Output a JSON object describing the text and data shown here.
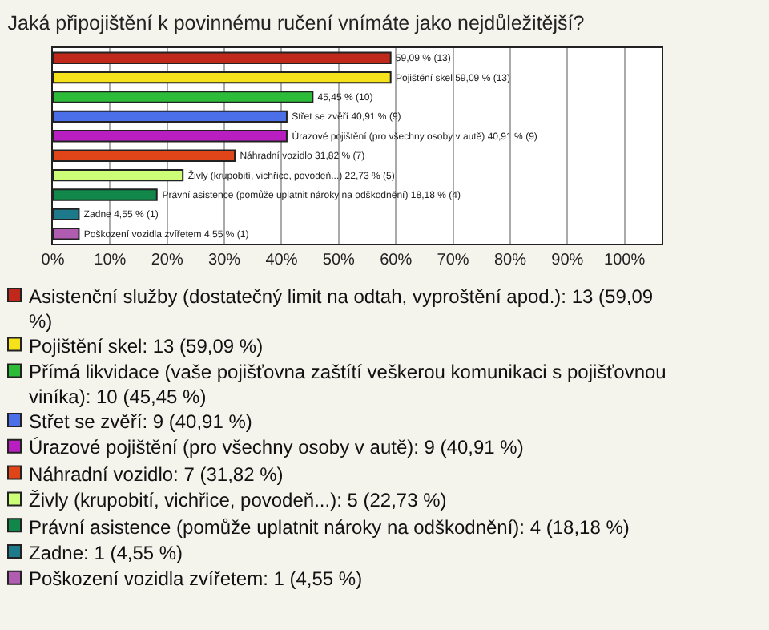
{
  "chart_data": {
    "type": "bar",
    "orientation": "horizontal",
    "title": "Jaká připojištění k povinnému ručení vnímáte jako nejdůležitější?",
    "categories": [
      null,
      null,
      null,
      null,
      null,
      null,
      null,
      null,
      null,
      null
    ],
    "series": [
      {
        "name": "Asistenční služby (dostatečný limit na odtah, vyproštění apod.): 13 (59,09 %)",
        "color": "#c0281c",
        "values": [
          59.09,
          null,
          null,
          null,
          null,
          null,
          null,
          null,
          null,
          null
        ],
        "value_labels": [
          "59,09 % (13)",
          null,
          null,
          null,
          null,
          null,
          null,
          null,
          null,
          null
        ]
      },
      {
        "name": "Pojištění skel: 13 (59,09 %)",
        "color": "#f5e21a",
        "values": [
          null,
          59.09,
          null,
          null,
          null,
          null,
          null,
          null,
          null,
          null
        ],
        "value_labels": [
          null,
          "Pojištění skel 59,09 % (13)",
          null,
          null,
          null,
          null,
          null,
          null,
          null,
          null
        ]
      },
      {
        "name": "Přímá likvidace (vaše pojišťovna zaštítí veškerou komunikaci s pojišťovnou viníka): 10 (45,45 %)",
        "color": "#2dbb3a",
        "values": [
          null,
          null,
          45.45,
          null,
          null,
          null,
          null,
          null,
          null,
          null
        ],
        "value_labels": [
          null,
          null,
          "45,45 % (10)",
          null,
          null,
          null,
          null,
          null,
          null,
          null
        ]
      },
      {
        "name": "Střet se zvěří: 9 (40,91 %)",
        "color": "#4a6fe8",
        "values": [
          null,
          null,
          null,
          40.91,
          null,
          null,
          null,
          null,
          null,
          null
        ],
        "value_labels": [
          null,
          null,
          null,
          "Střet se zvěří 40,91 % (9)",
          null,
          null,
          null,
          null,
          null,
          null
        ]
      },
      {
        "name": "Úrazové pojištění (pro všechny osoby v autě): 9 (40,91 %)",
        "color": "#b81ec0",
        "values": [
          null,
          null,
          null,
          null,
          40.91,
          null,
          null,
          null,
          null,
          null
        ],
        "value_labels": [
          null,
          null,
          null,
          null,
          "Úrazové pojištění (pro všechny osoby v autě) 40,91 % (9)",
          null,
          null,
          null,
          null,
          null
        ]
      },
      {
        "name": "Náhradní vozidlo: 7 (31,82 %)",
        "color": "#e0451a",
        "values": [
          null,
          null,
          null,
          null,
          null,
          31.82,
          null,
          null,
          null,
          null
        ],
        "value_labels": [
          null,
          null,
          null,
          null,
          null,
          "Náhradní vozidlo 31,82 % (7)",
          null,
          null,
          null,
          null
        ]
      },
      {
        "name": "Živly (krupobití, vichřice, povodeň...): 5 (22,73 %)",
        "color": "#ccff77",
        "values": [
          null,
          null,
          null,
          null,
          null,
          null,
          22.73,
          null,
          null,
          null
        ],
        "value_labels": [
          null,
          null,
          null,
          null,
          null,
          null,
          "Živly (krupobití, vichřice, povodeň...) 22,73 % (5)",
          null,
          null,
          null
        ]
      },
      {
        "name": "Právní asistence (pomůže uplatnit nároky na odškodnění): 4 (18,18 %)",
        "color": "#11884a",
        "values": [
          null,
          null,
          null,
          null,
          null,
          null,
          null,
          18.18,
          null,
          null
        ],
        "value_labels": [
          null,
          null,
          null,
          null,
          null,
          null,
          null,
          "Právní asistence (pomůže uplatnit nároky na odškodnění) 18,18 % (4)",
          null,
          null
        ]
      },
      {
        "name": "Zadne: 1 (4,55 %)",
        "color": "#1c7a8a",
        "values": [
          null,
          null,
          null,
          null,
          null,
          null,
          null,
          null,
          4.55,
          null
        ],
        "value_labels": [
          null,
          null,
          null,
          null,
          null,
          null,
          null,
          null,
          "Zadne 4,55 % (1)",
          null
        ]
      },
      {
        "name": "Poškození vozidla zvířetem: 1 (4,55 %)",
        "color": "#b05cb0",
        "values": [
          null,
          null,
          null,
          null,
          null,
          null,
          null,
          null,
          null,
          4.55
        ],
        "value_labels": [
          null,
          null,
          null,
          null,
          null,
          null,
          null,
          null,
          null,
          "Poškození vozidla zvířetem 4,55 % (1)"
        ]
      }
    ],
    "xlim": [
      0,
      106.5
    ],
    "xticks": [
      {
        "value": 0,
        "label": "0%"
      },
      {
        "value": 10,
        "label": "10%"
      },
      {
        "value": 20,
        "label": "20%"
      },
      {
        "value": 30,
        "label": "30%"
      },
      {
        "value": 40,
        "label": "40%"
      },
      {
        "value": 50,
        "label": "50%"
      },
      {
        "value": 60,
        "label": "60%"
      },
      {
        "value": 70,
        "label": "70%"
      },
      {
        "value": 80,
        "label": "80%"
      },
      {
        "value": 90,
        "label": "90%"
      },
      {
        "value": 100,
        "label": "100%"
      }
    ],
    "grid": "x",
    "legend": "bottom"
  }
}
